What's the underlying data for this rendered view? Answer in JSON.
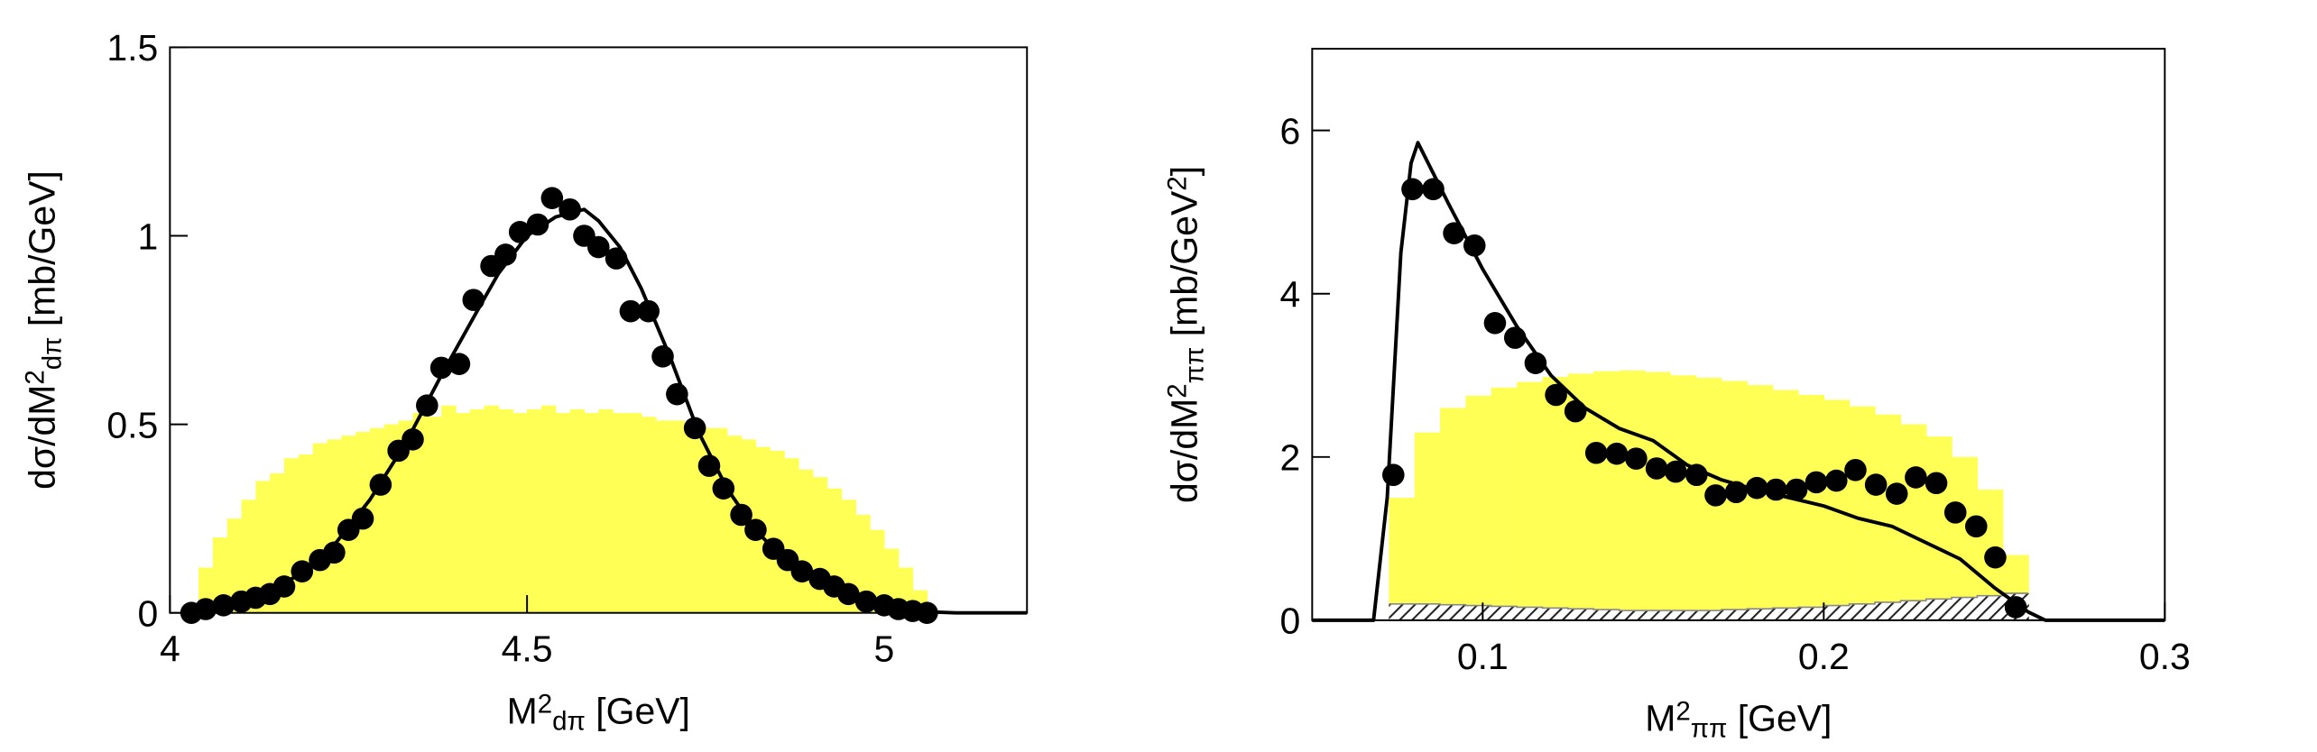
{
  "chart_data": [
    {
      "type": "scatter",
      "xlabel": [
        {
          "text": "M"
        },
        {
          "text": "2",
          "pos": "sup"
        },
        {
          "text": "dπ",
          "pos": "sub"
        },
        {
          "text": " [GeV]"
        }
      ],
      "ylabel": [
        {
          "text": "dσ/dM"
        },
        {
          "text": "2",
          "pos": "sup"
        },
        {
          "text": "dπ",
          "pos": "sub"
        },
        {
          "text": " [mb/GeV]"
        }
      ],
      "xlim": [
        4,
        5.2
      ],
      "ylim": [
        0,
        1.5
      ],
      "xticks": [
        4,
        4.5,
        5
      ],
      "yticks": [
        0,
        0.5,
        1,
        1.5
      ],
      "histogram": {
        "color": "#ffff55",
        "bins": [
          4.04,
          4.06,
          4.08,
          4.1,
          4.12,
          4.14,
          4.16,
          4.18,
          4.2,
          4.22,
          4.24,
          4.26,
          4.28,
          4.3,
          4.32,
          4.34,
          4.36,
          4.38,
          4.4,
          4.42,
          4.44,
          4.46,
          4.48,
          4.5,
          4.52,
          4.54,
          4.56,
          4.58,
          4.6,
          4.62,
          4.64,
          4.66,
          4.68,
          4.7,
          4.72,
          4.74,
          4.76,
          4.78,
          4.8,
          4.82,
          4.84,
          4.86,
          4.88,
          4.9,
          4.92,
          4.94,
          4.96,
          4.98,
          5.0,
          5.02,
          5.04,
          5.06
        ],
        "values": [
          0.12,
          0.2,
          0.25,
          0.3,
          0.35,
          0.37,
          0.41,
          0.42,
          0.45,
          0.46,
          0.47,
          0.48,
          0.49,
          0.5,
          0.51,
          0.53,
          0.52,
          0.55,
          0.53,
          0.54,
          0.55,
          0.54,
          0.53,
          0.54,
          0.55,
          0.53,
          0.54,
          0.53,
          0.54,
          0.53,
          0.53,
          0.52,
          0.51,
          0.51,
          0.5,
          0.49,
          0.49,
          0.47,
          0.46,
          0.44,
          0.43,
          0.41,
          0.38,
          0.36,
          0.33,
          0.3,
          0.26,
          0.22,
          0.17,
          0.12,
          0.06
        ]
      },
      "curve": {
        "color": "#000000",
        "x": [
          4.03,
          4.08,
          4.13,
          4.18,
          4.23,
          4.28,
          4.33,
          4.38,
          4.43,
          4.46,
          4.5,
          4.54,
          4.58,
          4.6,
          4.63,
          4.66,
          4.7,
          4.74,
          4.78,
          4.82,
          4.86,
          4.9,
          4.94,
          4.98,
          5.02,
          5.06,
          5.1,
          5.2
        ],
        "y": [
          0.005,
          0.02,
          0.05,
          0.1,
          0.18,
          0.3,
          0.45,
          0.63,
          0.8,
          0.9,
          1.0,
          1.05,
          1.07,
          1.04,
          0.97,
          0.86,
          0.68,
          0.48,
          0.33,
          0.22,
          0.14,
          0.09,
          0.05,
          0.025,
          0.01,
          0.003,
          0,
          0
        ]
      },
      "points": {
        "color": "#000000",
        "x": [
          4.03,
          4.05,
          4.075,
          4.1,
          4.12,
          4.14,
          4.16,
          4.185,
          4.21,
          4.23,
          4.25,
          4.27,
          4.295,
          4.32,
          4.34,
          4.36,
          4.38,
          4.405,
          4.425,
          4.45,
          4.47,
          4.49,
          4.515,
          4.535,
          4.56,
          4.58,
          4.6,
          4.625,
          4.645,
          4.67,
          4.69,
          4.71,
          4.735,
          4.755,
          4.775,
          4.8,
          4.82,
          4.845,
          4.865,
          4.885,
          4.91,
          4.93,
          4.95,
          4.975,
          5.0,
          5.02,
          5.04,
          5.06
        ],
        "y": [
          0,
          0.01,
          0.02,
          0.03,
          0.04,
          0.05,
          0.07,
          0.11,
          0.14,
          0.16,
          0.22,
          0.25,
          0.34,
          0.43,
          0.46,
          0.55,
          0.65,
          0.66,
          0.83,
          0.92,
          0.95,
          1.01,
          1.03,
          1.1,
          1.07,
          1.0,
          0.97,
          0.94,
          0.8,
          0.8,
          0.68,
          0.58,
          0.49,
          0.39,
          0.33,
          0.26,
          0.22,
          0.17,
          0.14,
          0.11,
          0.09,
          0.07,
          0.05,
          0.03,
          0.02,
          0.01,
          0.005,
          0
        ]
      }
    },
    {
      "type": "scatter",
      "xlabel": [
        {
          "text": "M"
        },
        {
          "text": "2",
          "pos": "sup"
        },
        {
          "text": "ππ",
          "pos": "sub"
        },
        {
          "text": " [GeV]"
        }
      ],
      "ylabel": [
        {
          "text": "dσ/dM"
        },
        {
          "text": "2",
          "pos": "sup"
        },
        {
          "text": "ππ",
          "pos": "sub"
        },
        {
          "text": " [mb/GeV"
        },
        {
          "text": "2",
          "pos": "sup"
        },
        {
          "text": "]"
        }
      ],
      "xlim": [
        0.05,
        0.3
      ],
      "ylim": [
        0,
        7
      ],
      "xticks": [
        0.1,
        0.2,
        0.3
      ],
      "yticks": [
        0,
        2,
        4,
        6
      ],
      "histogram": {
        "color": "#ffff55",
        "bins": [
          0.0725,
          0.08,
          0.0875,
          0.095,
          0.1025,
          0.11,
          0.1175,
          0.125,
          0.1325,
          0.14,
          0.1475,
          0.155,
          0.1625,
          0.17,
          0.1775,
          0.185,
          0.1925,
          0.2,
          0.2075,
          0.215,
          0.2225,
          0.23,
          0.2375,
          0.245,
          0.2525,
          0.26
        ],
        "values": [
          1.5,
          2.3,
          2.6,
          2.75,
          2.85,
          2.92,
          2.98,
          3.02,
          3.05,
          3.06,
          3.04,
          3.0,
          2.97,
          2.93,
          2.88,
          2.82,
          2.76,
          2.7,
          2.62,
          2.52,
          2.4,
          2.25,
          2.0,
          1.6,
          0.8
        ]
      },
      "hatched": {
        "color": "#888888",
        "bins": [
          0.0725,
          0.08,
          0.0875,
          0.095,
          0.1025,
          0.11,
          0.1175,
          0.125,
          0.1325,
          0.14,
          0.1475,
          0.155,
          0.1625,
          0.17,
          0.1775,
          0.185,
          0.1925,
          0.2,
          0.2075,
          0.215,
          0.2225,
          0.23,
          0.2375,
          0.245,
          0.2525,
          0.26
        ],
        "values": [
          0.2,
          0.2,
          0.19,
          0.18,
          0.17,
          0.16,
          0.15,
          0.14,
          0.13,
          0.12,
          0.12,
          0.12,
          0.12,
          0.13,
          0.14,
          0.15,
          0.16,
          0.18,
          0.2,
          0.22,
          0.24,
          0.26,
          0.28,
          0.3,
          0.33
        ]
      },
      "curve": {
        "color": "#000000",
        "x": [
          0.05,
          0.068,
          0.072,
          0.076,
          0.079,
          0.081,
          0.084,
          0.09,
          0.1,
          0.11,
          0.12,
          0.13,
          0.14,
          0.15,
          0.16,
          0.17,
          0.18,
          0.19,
          0.2,
          0.21,
          0.22,
          0.23,
          0.24,
          0.25,
          0.26,
          0.265,
          0.3
        ],
        "y": [
          0,
          0,
          1.5,
          4.5,
          5.6,
          5.85,
          5.6,
          5.1,
          4.3,
          3.6,
          3.0,
          2.6,
          2.35,
          2.2,
          1.9,
          1.72,
          1.6,
          1.5,
          1.4,
          1.25,
          1.15,
          0.95,
          0.75,
          0.4,
          0.1,
          0,
          0
        ]
      },
      "points": {
        "color": "#000000",
        "x": [
          0.0738,
          0.0794,
          0.0855,
          0.0916,
          0.0976,
          0.1036,
          0.1095,
          0.1155,
          0.1215,
          0.1272,
          0.1333,
          0.1393,
          0.145,
          0.151,
          0.1566,
          0.1627,
          0.1683,
          0.1743,
          0.1804,
          0.186,
          0.192,
          0.1978,
          0.2037,
          0.2093,
          0.2153,
          0.2214,
          0.227,
          0.233,
          0.2386,
          0.2447,
          0.2503,
          0.2563
        ],
        "y": [
          1.78,
          5.28,
          5.28,
          4.74,
          4.59,
          3.64,
          3.46,
          3.15,
          2.76,
          2.56,
          2.05,
          2.04,
          1.98,
          1.86,
          1.82,
          1.78,
          1.53,
          1.57,
          1.62,
          1.6,
          1.6,
          1.69,
          1.71,
          1.84,
          1.66,
          1.55,
          1.75,
          1.68,
          1.32,
          1.15,
          0.77,
          0.16
        ]
      }
    }
  ]
}
